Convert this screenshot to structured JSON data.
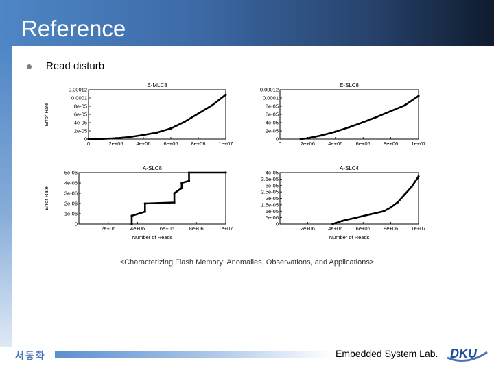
{
  "slide": {
    "title": "Reference",
    "bullet": "Read disturb"
  },
  "caption": "<Characterizing Flash Memory: Anomalies, Observations, and Applications>",
  "footer": {
    "author": "서동화",
    "lab": "Embedded System Lab.",
    "logo_text": "DKU"
  },
  "colors": {
    "header_start": "#4f86c6",
    "header_end": "#0f1b2e",
    "curve": "#000000"
  },
  "chart_data": [
    {
      "type": "line",
      "title": "E-MLC8",
      "ylabel": "Error Rate",
      "xlabel": "",
      "xlim": [
        0,
        10000000
      ],
      "ylim": [
        0,
        0.00012
      ],
      "x_ticks": [
        0,
        2000000,
        4000000,
        6000000,
        8000000,
        10000000
      ],
      "x_tick_labels": [
        "0",
        "2e+06",
        "4e+06",
        "6e+06",
        "8e+06",
        "1e+07"
      ],
      "y_ticks": [
        0,
        2e-05,
        4e-05,
        6e-05,
        8e-05,
        0.0001,
        0.00012
      ],
      "y_tick_labels": [
        "0",
        "2e-05",
        "4e-05",
        "6e-05",
        "8e-05",
        "0.0001",
        "0.00012"
      ],
      "series": [
        {
          "name": "E-MLC8",
          "x": [
            0,
            1000000,
            2000000,
            3000000,
            4000000,
            5000000,
            6000000,
            7000000,
            8000000,
            9000000,
            10000000
          ],
          "y": [
            0,
            5e-07,
            2e-06,
            5e-06,
            1e-05,
            1.6e-05,
            2.6e-05,
            4.2e-05,
            6.2e-05,
            8.2e-05,
            0.000108
          ]
        }
      ]
    },
    {
      "type": "line",
      "title": "E-SLC8",
      "ylabel": "",
      "xlabel": "",
      "xlim": [
        0,
        10000000
      ],
      "ylim": [
        0,
        0.00012
      ],
      "x_ticks": [
        0,
        2000000,
        4000000,
        6000000,
        8000000,
        10000000
      ],
      "x_tick_labels": [
        "0",
        "2e+06",
        "4e+06",
        "6e+06",
        "8e+06",
        "1e+07"
      ],
      "y_ticks": [
        0,
        2e-05,
        4e-05,
        6e-05,
        8e-05,
        0.0001,
        0.00012
      ],
      "y_tick_labels": [
        "0",
        "2e-05",
        "4e-05",
        "6e-05",
        "8e-05",
        "0.0001",
        "0.00012"
      ],
      "series": [
        {
          "name": "E-SLC8",
          "x": [
            1500000,
            2000000,
            3000000,
            4000000,
            5000000,
            6000000,
            7000000,
            8000000,
            9000000,
            10000000
          ],
          "y": [
            0,
            2e-06,
            9e-06,
            1.8e-05,
            2.9e-05,
            4.1e-05,
            5.4e-05,
            6.8e-05,
            8.2e-05,
            0.000105
          ]
        }
      ]
    },
    {
      "type": "line",
      "title": "A-SLC8",
      "ylabel": "Error Rate",
      "xlabel": "Number of Reads",
      "xlim": [
        0,
        10000000
      ],
      "ylim": [
        0,
        5e-06
      ],
      "x_ticks": [
        0,
        2000000,
        4000000,
        6000000,
        8000000,
        10000000
      ],
      "x_tick_labels": [
        "0",
        "2e+06",
        "4e+06",
        "6e+06",
        "8e+06",
        "1e+07"
      ],
      "y_ticks": [
        0,
        1e-06,
        2e-06,
        3e-06,
        4e-06,
        5e-06
      ],
      "y_tick_labels": [
        "0",
        "1e-06",
        "2e-06",
        "3e-06",
        "4e-06",
        "5e-06"
      ],
      "series": [
        {
          "name": "A-SLC8",
          "x": [
            3600000,
            3600000,
            4500000,
            4500000,
            6500000,
            6500000,
            7000000,
            7000000,
            7500000,
            7500000,
            10000000
          ],
          "y": [
            0,
            8e-07,
            1.2e-06,
            2e-06,
            2.1e-06,
            3e-06,
            3.5e-06,
            4e-06,
            4.2e-06,
            5e-06,
            5e-06
          ]
        }
      ]
    },
    {
      "type": "line",
      "title": "A-SLC4",
      "ylabel": "",
      "xlabel": "Number of Reads",
      "xlim": [
        0,
        10000000
      ],
      "ylim": [
        0,
        4e-05
      ],
      "x_ticks": [
        0,
        2000000,
        4000000,
        6000000,
        8000000,
        10000000
      ],
      "x_tick_labels": [
        "0",
        "2e+06",
        "4e+06",
        "6e+06",
        "8e+06",
        "1e+07"
      ],
      "y_ticks": [
        0,
        5e-06,
        1e-05,
        1.5e-05,
        2e-05,
        2.5e-05,
        3e-05,
        3.5e-05,
        4e-05
      ],
      "y_tick_labels": [
        "0",
        "5e-06",
        "1e-05",
        "1.5e-05",
        "2e-05",
        "2.5e-05",
        "3e-05",
        "3.5e-05",
        "4e-05"
      ],
      "series": [
        {
          "name": "A-SLC4",
          "x": [
            3800000,
            4500000,
            5500000,
            6500000,
            7500000,
            8000000,
            8500000,
            9000000,
            9500000,
            10000000
          ],
          "y": [
            0,
            2.5e-06,
            5e-06,
            7.5e-06,
            1e-05,
            1.3e-05,
            1.7e-05,
            2.3e-05,
            2.9e-05,
            3.7e-05
          ]
        }
      ]
    }
  ]
}
